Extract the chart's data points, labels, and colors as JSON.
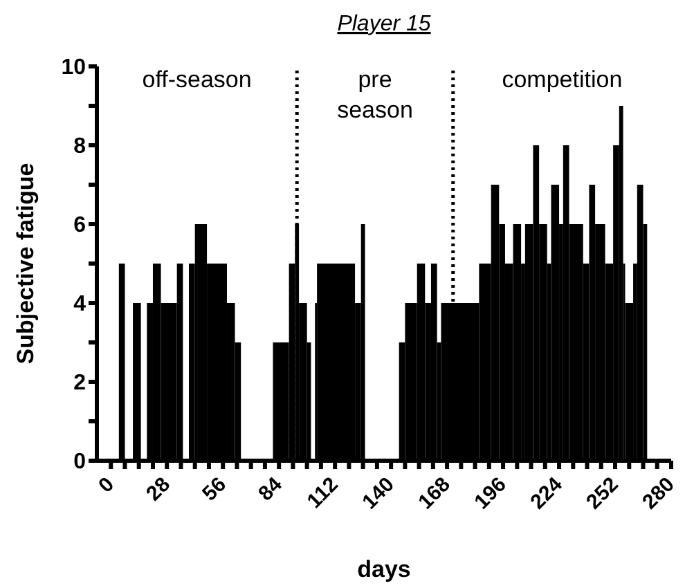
{
  "chart_data": {
    "type": "histogram",
    "title": "Player 15",
    "xlabel": "days",
    "ylabel": "Subjective fatigue",
    "annotations": [
      "off-season",
      "pre season",
      "competition"
    ],
    "bins": [
      4,
      7,
      11,
      15,
      18,
      21,
      25,
      33,
      36,
      39,
      42,
      48,
      58,
      62,
      65,
      81,
      89,
      92,
      94,
      98,
      100,
      102,
      103,
      122,
      125,
      127,
      144,
      147,
      153,
      157,
      160,
      163,
      165,
      184,
      190,
      194,
      197,
      201,
      205,
      207,
      211,
      214,
      218,
      220,
      224,
      226,
      229,
      236,
      239,
      242,
      247,
      251,
      254,
      256,
      257,
      261,
      263,
      266,
      268
    ],
    "values": [
      5,
      0,
      4,
      0,
      4,
      5,
      4,
      5,
      0,
      5,
      6,
      5,
      4,
      3,
      0,
      3,
      5,
      6,
      4,
      3,
      0,
      4,
      5,
      4,
      6,
      0,
      3,
      4,
      5,
      4,
      5,
      3,
      4,
      5,
      7,
      6,
      5,
      6,
      5,
      6,
      8,
      6,
      5,
      7,
      6,
      8,
      6,
      5,
      7,
      6,
      5,
      8,
      9,
      5,
      4,
      5,
      7,
      6
    ],
    "color": "#000000",
    "xlim": [
      -7,
      280
    ],
    "xticks": [
      0,
      {
        "value": 7,
        "label": null
      },
      {
        "value": 14,
        "label": null
      },
      {
        "value": 21,
        "label": null
      },
      28,
      {
        "value": 35,
        "label": null
      },
      {
        "value": 42,
        "label": null
      },
      {
        "value": 49,
        "label": null
      },
      56,
      {
        "value": 63,
        "label": null
      },
      {
        "value": 70,
        "label": null
      },
      {
        "value": 77,
        "label": null
      },
      84,
      {
        "value": 91,
        "label": null
      },
      {
        "value": 98,
        "label": null
      },
      {
        "value": 105,
        "label": null
      },
      112,
      {
        "value": 119,
        "label": null
      },
      {
        "value": 126,
        "label": null
      },
      {
        "value": 133,
        "label": null
      },
      140,
      {
        "value": 147,
        "label": null
      },
      {
        "value": 154,
        "label": null
      },
      {
        "value": 161,
        "label": null
      },
      168,
      {
        "value": 175,
        "label": null
      },
      {
        "value": 182,
        "label": null
      },
      {
        "value": 189,
        "label": null
      },
      196,
      {
        "value": 203,
        "label": null
      },
      {
        "value": 210,
        "label": null
      },
      {
        "value": 217,
        "label": null
      },
      224,
      {
        "value": 231,
        "label": null
      },
      {
        "value": 238,
        "label": null
      },
      {
        "value": 245,
        "label": null
      },
      252,
      {
        "value": 259,
        "label": null
      },
      {
        "value": 266,
        "label": null
      },
      {
        "value": 273,
        "label": null
      },
      280
    ],
    "ylim": [
      0,
      10
    ],
    "yticks": [
      0,
      {
        "value": 1,
        "label": null
      },
      2,
      {
        "value": 3,
        "label": null
      },
      4,
      {
        "value": 5,
        "label": null
      },
      6,
      {
        "value": 7,
        "label": null
      },
      8,
      {
        "value": 9,
        "label": null
      },
      10
    ],
    "ref_lines": [
      {
        "axis": "x",
        "value": 93,
        "line_style": "dotted",
        "color": "#000000"
      },
      {
        "axis": "x",
        "value": 171,
        "line_style": "dotted",
        "color": "#000000"
      }
    ],
    "grid": false,
    "legend": false
  }
}
